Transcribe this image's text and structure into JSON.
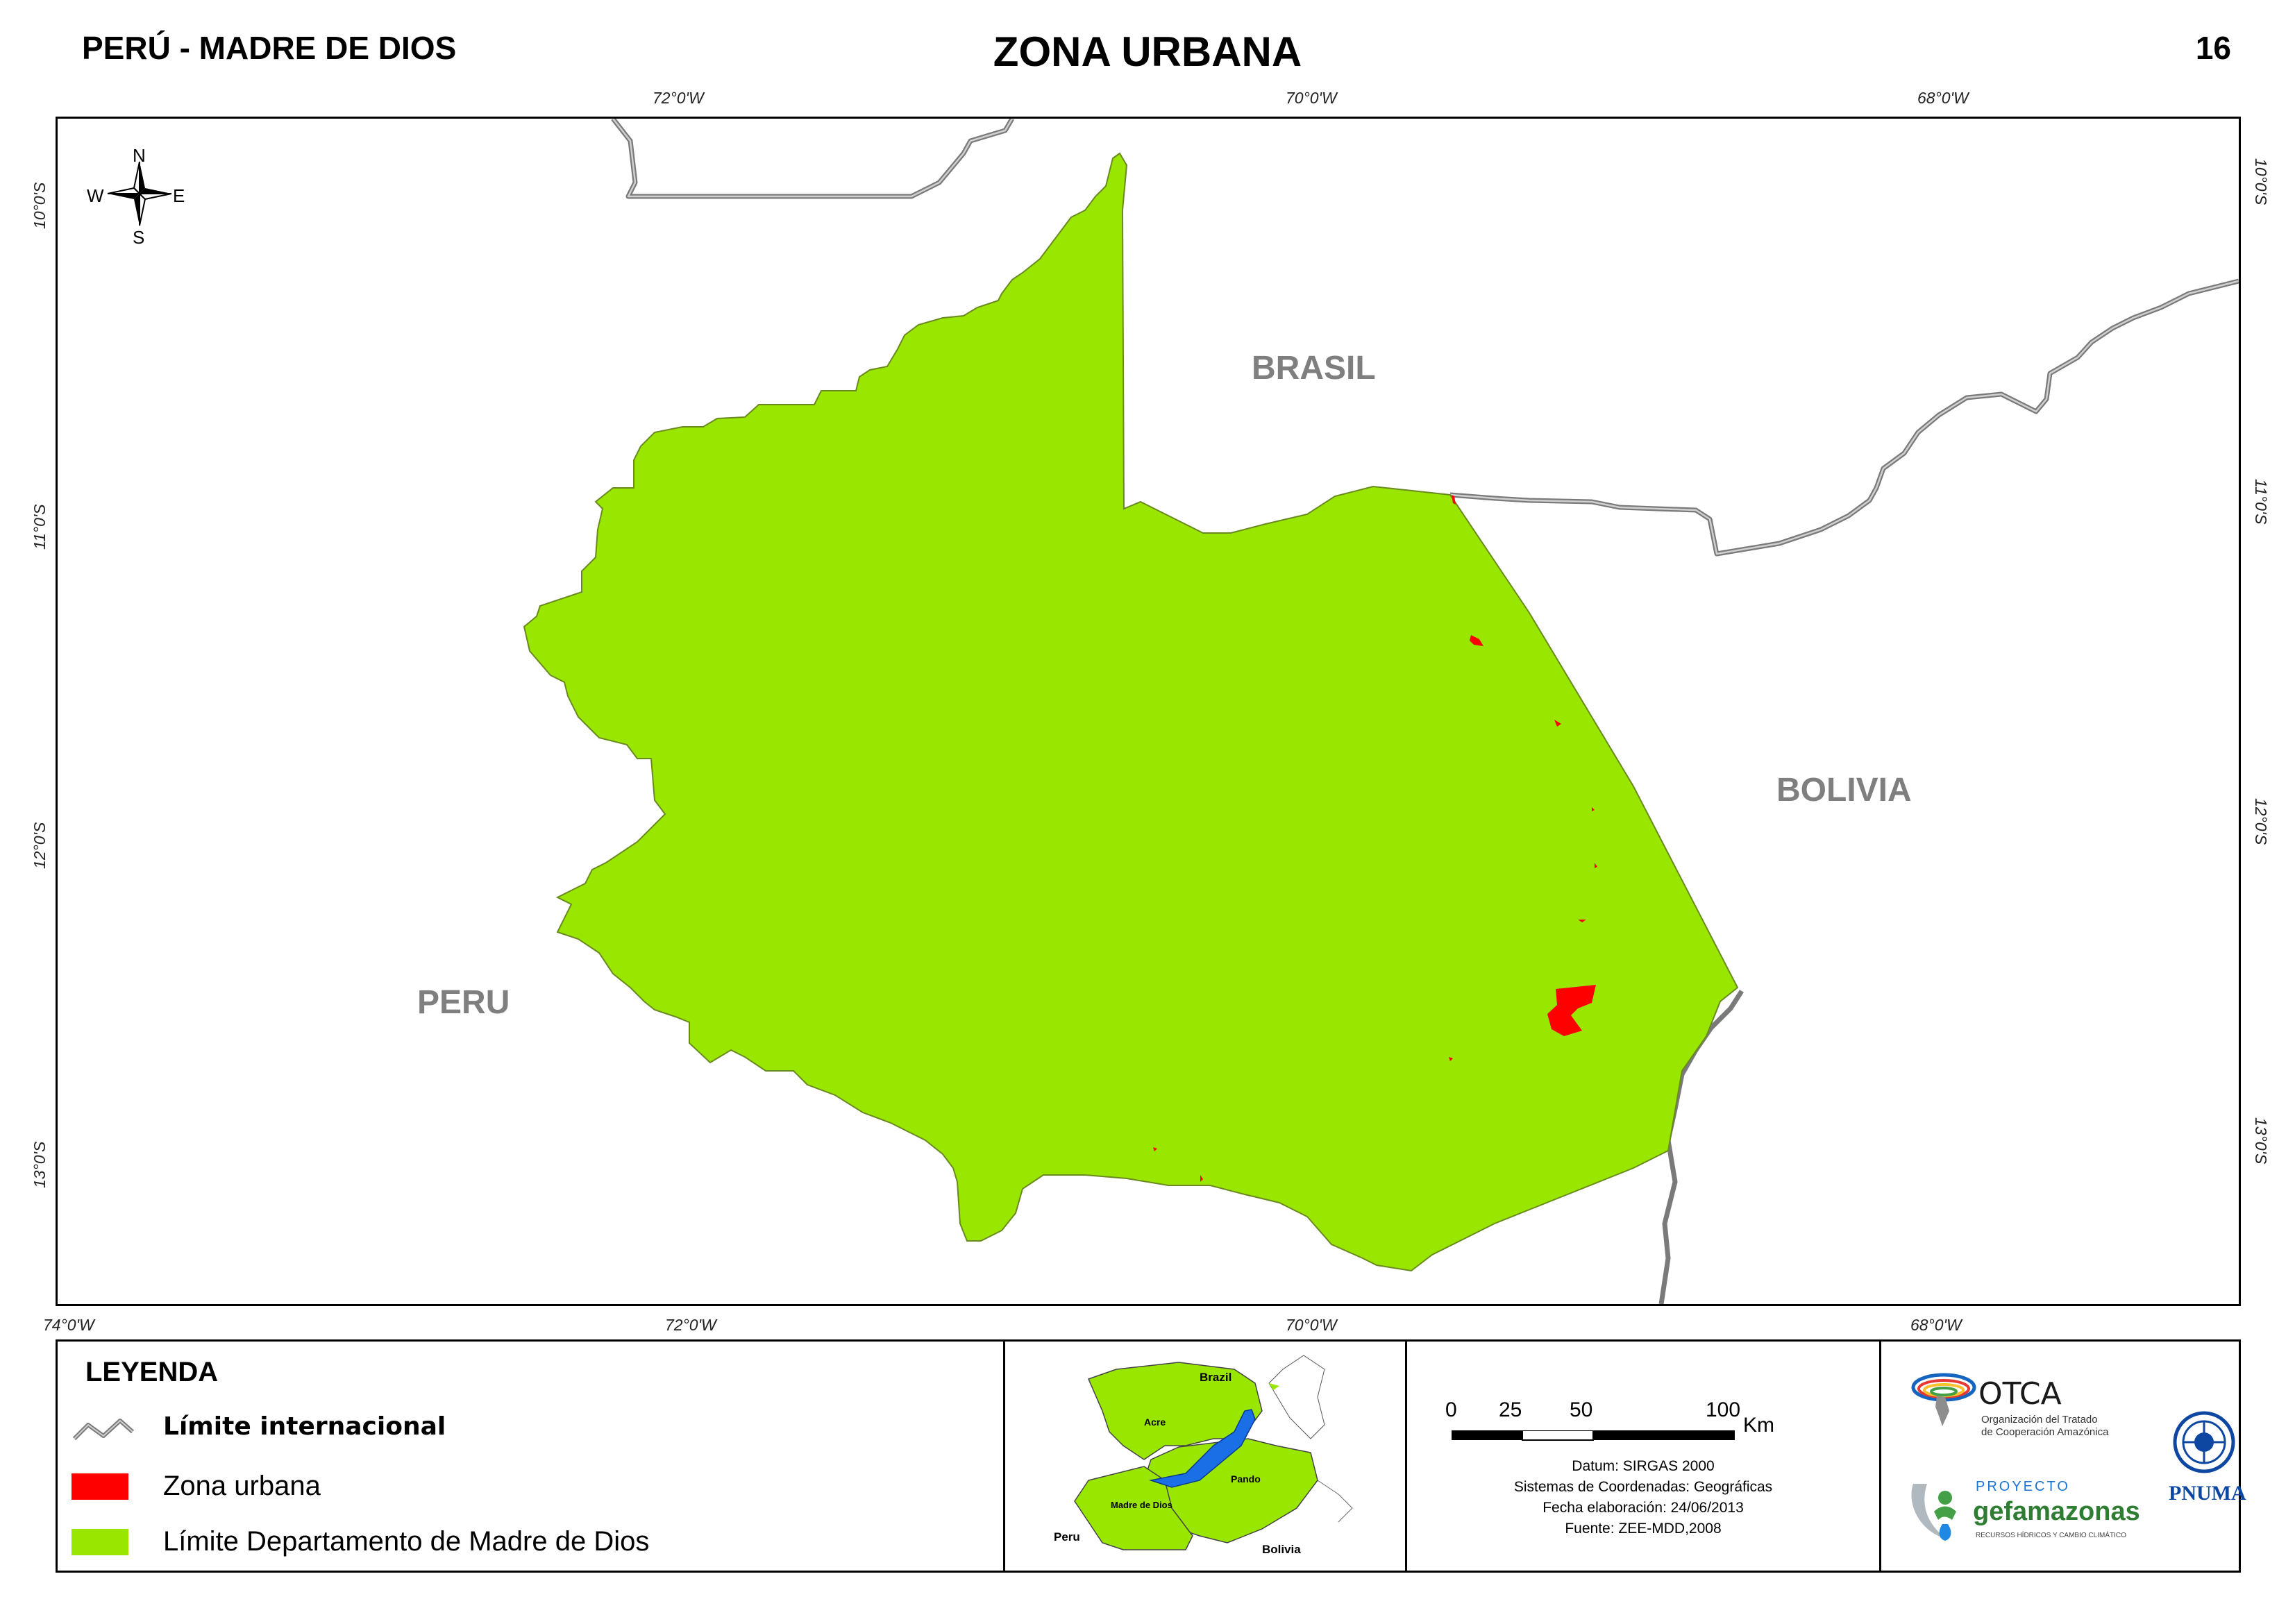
{
  "header": {
    "left": "PERÚ - MADRE DE DIOS",
    "title": "ZONA URBANA",
    "page": "16"
  },
  "map": {
    "coords": {
      "top": [
        "72°0'W",
        "70°0'W",
        "68°0'W"
      ],
      "bottom": [
        "74°0'W",
        "72°0'W",
        "70°0'W",
        "68°0'W"
      ],
      "left": [
        "10°0'S",
        "11°0'S",
        "12°0'S",
        "13°0'S"
      ],
      "right": [
        "10°0'S",
        "11°0'S",
        "12°0'S",
        "13°0'S"
      ]
    },
    "countries": {
      "brasil": "BRASIL",
      "bolivia": "BOLIVIA",
      "peru": "PERU"
    },
    "compass": {
      "n": "N",
      "s": "S",
      "e": "E",
      "w": "W"
    },
    "colors": {
      "department": "#99e600",
      "urban": "#ff0000",
      "border": "#7a7a7a"
    }
  },
  "legend": {
    "title": "LEYENDA",
    "items": [
      {
        "label": "Límite internacional",
        "symbol": "line"
      },
      {
        "label": "Zona urbana",
        "symbol": "red-fill"
      },
      {
        "label": "Límite Departamento de Madre de Dios",
        "symbol": "green-fill"
      }
    ]
  },
  "inset": {
    "labels": {
      "brazil": "Brazil",
      "acre": "Acre",
      "pando": "Pando",
      "madre": "Madre de Dios",
      "peru": "Peru",
      "bolivia": "Bolivia"
    },
    "colors": {
      "region": "#99e600",
      "highlight": "#1a6fe6"
    }
  },
  "scale": {
    "ticks": [
      "0",
      "25",
      "50",
      "100"
    ],
    "unit": "Km",
    "datum": "Datum: SIRGAS 2000",
    "crs": "Sistemas de Coordenadas: Geográficas",
    "date": "Fecha elaboración: 24/06/2013",
    "source": "Fuente: ZEE-MDD,2008"
  },
  "logos": {
    "otca": "OTCA",
    "otca_sub1": "Organización del Tratado",
    "otca_sub2": "de Cooperación Amazónica",
    "proyecto": "PROYECTO",
    "gef": "gefamazonas",
    "gef_sub": "RECURSOS HÍDRICOS Y CAMBIO CLIMÁTICO",
    "pnuma": "PNUMA"
  }
}
